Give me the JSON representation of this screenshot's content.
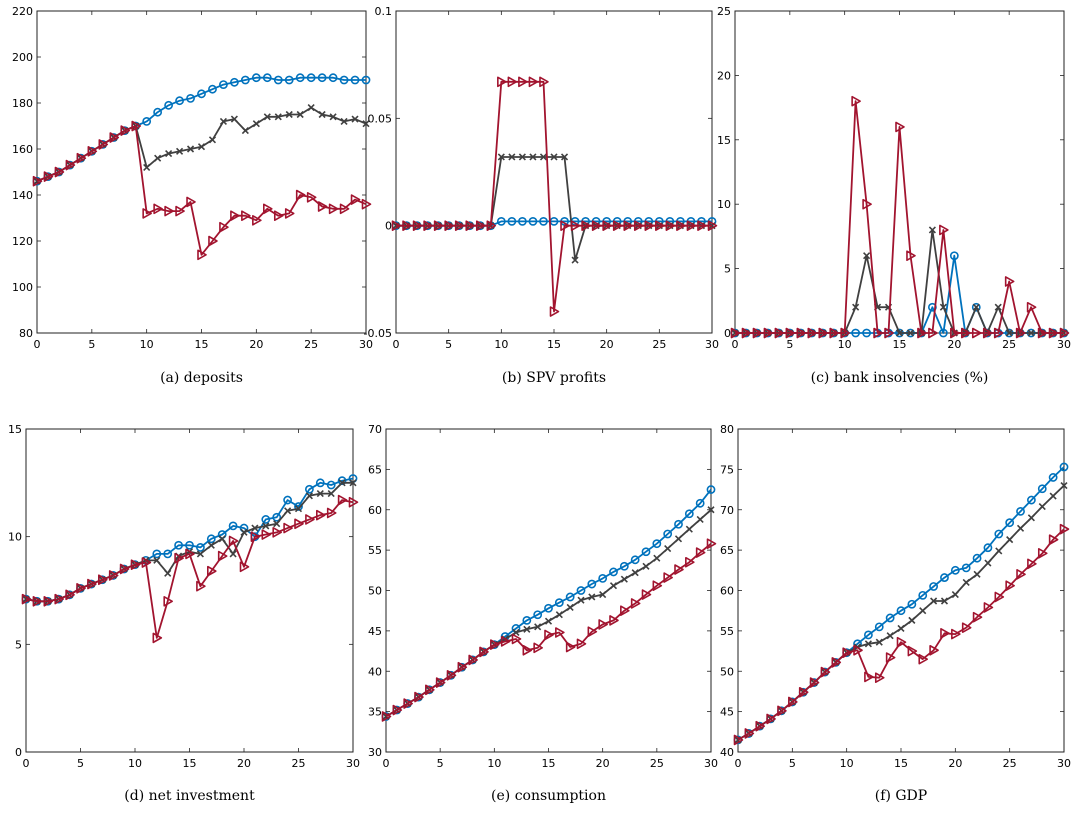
{
  "chart_data": [
    {
      "type": "line",
      "caption": "(a) deposits",
      "xlim": [
        0,
        30
      ],
      "ylim": [
        80,
        220
      ],
      "xticks": [
        0,
        5,
        10,
        15,
        20,
        25,
        30
      ],
      "yticks": [
        80,
        100,
        120,
        140,
        160,
        180,
        200,
        220
      ],
      "x": [
        0,
        1,
        2,
        3,
        4,
        5,
        6,
        7,
        8,
        9,
        10,
        11,
        12,
        13,
        14,
        15,
        16,
        17,
        18,
        19,
        20,
        21,
        22,
        23,
        24,
        25,
        26,
        27,
        28,
        29,
        30
      ],
      "series": [
        {
          "color": "#0072bd",
          "marker": "circle",
          "values": [
            146,
            148,
            150,
            153,
            156,
            159,
            162,
            165,
            168,
            170,
            172,
            176,
            179,
            181,
            182,
            184,
            186,
            188,
            189,
            190,
            191,
            191,
            190,
            190,
            191,
            191,
            191,
            191,
            190,
            190,
            190
          ]
        },
        {
          "color": "#404040",
          "marker": "x",
          "values": [
            146,
            148,
            150,
            153,
            156,
            159,
            162,
            165,
            168,
            170,
            152,
            156,
            158,
            159,
            160,
            161,
            164,
            172,
            173,
            168,
            171,
            174,
            174,
            175,
            175,
            178,
            175,
            174,
            172,
            173,
            171
          ]
        },
        {
          "color": "#a2142f",
          "marker": "triangle-right",
          "values": [
            146,
            148,
            150,
            153,
            156,
            159,
            162,
            165,
            168,
            170,
            132,
            134,
            133,
            133,
            137,
            114,
            120,
            126,
            131,
            131,
            129,
            134,
            131,
            132,
            140,
            139,
            135,
            134,
            134,
            138,
            136
          ]
        }
      ]
    },
    {
      "type": "line",
      "caption": "(b) SPV profits",
      "xlim": [
        0,
        30
      ],
      "ylim": [
        -0.05,
        0.1
      ],
      "xticks": [
        0,
        5,
        10,
        15,
        20,
        25,
        30
      ],
      "yticks": [
        -0.05,
        0,
        0.05,
        0.1
      ],
      "ytick_labels": [
        "-0.05",
        "0",
        "0.05",
        "0.1"
      ],
      "x": [
        0,
        1,
        2,
        3,
        4,
        5,
        6,
        7,
        8,
        9,
        10,
        11,
        12,
        13,
        14,
        15,
        16,
        17,
        18,
        19,
        20,
        21,
        22,
        23,
        24,
        25,
        26,
        27,
        28,
        29,
        30
      ],
      "series": [
        {
          "color": "#0072bd",
          "marker": "circle",
          "values": [
            0,
            0,
            0,
            0,
            0,
            0,
            0,
            0,
            0,
            0,
            0.002,
            0.002,
            0.002,
            0.002,
            0.002,
            0.002,
            0.002,
            0.002,
            0.002,
            0.002,
            0.002,
            0.002,
            0.002,
            0.002,
            0.002,
            0.002,
            0.002,
            0.002,
            0.002,
            0.002,
            0.002
          ]
        },
        {
          "color": "#404040",
          "marker": "x",
          "values": [
            0,
            0,
            0,
            0,
            0,
            0,
            0,
            0,
            0,
            0,
            0.032,
            0.032,
            0.032,
            0.032,
            0.032,
            0.032,
            0.032,
            -0.016,
            0,
            0,
            0,
            0,
            0,
            0,
            0,
            0,
            0,
            0,
            0,
            0,
            0
          ]
        },
        {
          "color": "#a2142f",
          "marker": "triangle-right",
          "values": [
            0,
            0,
            0,
            0,
            0,
            0,
            0,
            0,
            0,
            0,
            0.067,
            0.067,
            0.067,
            0.067,
            0.067,
            -0.04,
            0,
            0,
            0,
            0,
            0,
            0,
            0,
            0,
            0,
            0,
            0,
            0,
            0,
            0,
            0
          ]
        }
      ]
    },
    {
      "type": "line",
      "caption": "(c) bank insolvencies (%)",
      "xlim": [
        0,
        30
      ],
      "ylim": [
        0,
        25
      ],
      "xticks": [
        0,
        5,
        10,
        15,
        20,
        25,
        30
      ],
      "yticks": [
        0,
        5,
        10,
        15,
        20,
        25
      ],
      "x": [
        0,
        1,
        2,
        3,
        4,
        5,
        6,
        7,
        8,
        9,
        10,
        11,
        12,
        13,
        14,
        15,
        16,
        17,
        18,
        19,
        20,
        21,
        22,
        23,
        24,
        25,
        26,
        27,
        28,
        29,
        30
      ],
      "series": [
        {
          "color": "#0072bd",
          "marker": "circle",
          "values": [
            0,
            0,
            0,
            0,
            0,
            0,
            0,
            0,
            0,
            0,
            0,
            0,
            0,
            0,
            0,
            0,
            0,
            0,
            2,
            0,
            6,
            0,
            2,
            0,
            0,
            0,
            0,
            0,
            0,
            0,
            0
          ]
        },
        {
          "color": "#404040",
          "marker": "x",
          "values": [
            0,
            0,
            0,
            0,
            0,
            0,
            0,
            0,
            0,
            0,
            0,
            2,
            6,
            2,
            2,
            0,
            0,
            0,
            8,
            2,
            0,
            0,
            2,
            0,
            2,
            0,
            0,
            0,
            0,
            0,
            0
          ]
        },
        {
          "color": "#a2142f",
          "marker": "triangle-right",
          "values": [
            0,
            0,
            0,
            0,
            0,
            0,
            0,
            0,
            0,
            0,
            0,
            18,
            10,
            0,
            0,
            16,
            6,
            0,
            0,
            8,
            0,
            0,
            0,
            0,
            0,
            4,
            0,
            2,
            0,
            0,
            0
          ]
        }
      ]
    },
    {
      "type": "line",
      "caption": "(d) net investment",
      "xlim": [
        0,
        30
      ],
      "ylim": [
        0,
        15
      ],
      "xticks": [
        0,
        5,
        10,
        15,
        20,
        25,
        30
      ],
      "yticks": [
        0,
        5,
        10,
        15
      ],
      "x": [
        0,
        1,
        2,
        3,
        4,
        5,
        6,
        7,
        8,
        9,
        10,
        11,
        12,
        13,
        14,
        15,
        16,
        17,
        18,
        19,
        20,
        21,
        22,
        23,
        24,
        25,
        26,
        27,
        28,
        29,
        30
      ],
      "series": [
        {
          "color": "#0072bd",
          "marker": "circle",
          "values": [
            7.1,
            7.0,
            7.0,
            7.1,
            7.3,
            7.6,
            7.8,
            8.0,
            8.2,
            8.5,
            8.7,
            8.9,
            9.2,
            9.2,
            9.6,
            9.6,
            9.5,
            9.9,
            10.1,
            10.5,
            10.4,
            10.0,
            10.8,
            10.9,
            11.7,
            11.4,
            12.2,
            12.5,
            12.4,
            12.6,
            12.7
          ]
        },
        {
          "color": "#404040",
          "marker": "x",
          "values": [
            7.1,
            7.0,
            7.0,
            7.1,
            7.3,
            7.6,
            7.8,
            8.0,
            8.2,
            8.5,
            8.7,
            8.9,
            8.9,
            8.3,
            9.1,
            9.3,
            9.2,
            9.6,
            9.9,
            9.2,
            10.2,
            10.4,
            10.5,
            10.6,
            11.2,
            11.3,
            11.9,
            12.0,
            12.0,
            12.5,
            12.5
          ]
        },
        {
          "color": "#a2142f",
          "marker": "triangle-right",
          "values": [
            7.1,
            7.0,
            7.0,
            7.1,
            7.3,
            7.6,
            7.8,
            8.0,
            8.2,
            8.5,
            8.7,
            8.8,
            5.3,
            7.0,
            9.0,
            9.2,
            7.7,
            8.4,
            9.1,
            9.8,
            8.6,
            10.0,
            10.1,
            10.2,
            10.4,
            10.6,
            10.8,
            11.0,
            11.1,
            11.7,
            11.6
          ]
        }
      ]
    },
    {
      "type": "line",
      "caption": "(e) consumption",
      "xlim": [
        0,
        30
      ],
      "ylim": [
        30,
        70
      ],
      "xticks": [
        0,
        5,
        10,
        15,
        20,
        25,
        30
      ],
      "yticks": [
        30,
        35,
        40,
        45,
        50,
        55,
        60,
        65,
        70
      ],
      "x": [
        0,
        1,
        2,
        3,
        4,
        5,
        6,
        7,
        8,
        9,
        10,
        11,
        12,
        13,
        14,
        15,
        16,
        17,
        18,
        19,
        20,
        21,
        22,
        23,
        24,
        25,
        26,
        27,
        28,
        29,
        30
      ],
      "series": [
        {
          "color": "#0072bd",
          "marker": "circle",
          "values": [
            34.4,
            35.2,
            36.0,
            36.8,
            37.7,
            38.6,
            39.5,
            40.5,
            41.4,
            42.4,
            43.3,
            44.3,
            45.3,
            46.3,
            47.0,
            47.8,
            48.5,
            49.2,
            50.0,
            50.8,
            51.5,
            52.3,
            53.0,
            53.8,
            54.8,
            55.8,
            57.0,
            58.2,
            59.5,
            60.8,
            62.5
          ]
        },
        {
          "color": "#404040",
          "marker": "x",
          "values": [
            34.4,
            35.2,
            36.0,
            36.8,
            37.7,
            38.6,
            39.5,
            40.5,
            41.4,
            42.4,
            43.3,
            44.0,
            44.8,
            45.2,
            45.5,
            46.2,
            47.0,
            47.9,
            48.8,
            49.2,
            49.5,
            50.6,
            51.4,
            52.2,
            53.0,
            54.0,
            55.2,
            56.4,
            57.6,
            58.8,
            60.0
          ]
        },
        {
          "color": "#a2142f",
          "marker": "triangle-right",
          "values": [
            34.4,
            35.2,
            36.0,
            36.8,
            37.7,
            38.6,
            39.5,
            40.5,
            41.4,
            42.4,
            43.3,
            43.7,
            44.0,
            42.6,
            42.9,
            44.5,
            44.8,
            43.0,
            43.4,
            44.9,
            45.8,
            46.3,
            47.5,
            48.4,
            49.5,
            50.6,
            51.6,
            52.6,
            53.5,
            54.7,
            55.8
          ]
        }
      ]
    },
    {
      "type": "line",
      "caption": "(f) GDP",
      "xlim": [
        0,
        30
      ],
      "ylim": [
        40,
        80
      ],
      "xticks": [
        0,
        5,
        10,
        15,
        20,
        25,
        30
      ],
      "yticks": [
        40,
        45,
        50,
        55,
        60,
        65,
        70,
        75,
        80
      ],
      "x": [
        0,
        1,
        2,
        3,
        4,
        5,
        6,
        7,
        8,
        9,
        10,
        11,
        12,
        13,
        14,
        15,
        16,
        17,
        18,
        19,
        20,
        21,
        22,
        23,
        24,
        25,
        26,
        27,
        28,
        29,
        30
      ],
      "series": [
        {
          "color": "#0072bd",
          "marker": "circle",
          "values": [
            41.5,
            42.3,
            43.2,
            44.1,
            45.1,
            46.2,
            47.4,
            48.6,
            49.9,
            51.1,
            52.3,
            53.4,
            54.5,
            55.5,
            56.6,
            57.5,
            58.3,
            59.4,
            60.5,
            61.6,
            62.5,
            62.8,
            64.0,
            65.3,
            67.0,
            68.4,
            69.8,
            71.2,
            72.6,
            74.0,
            75.3
          ]
        },
        {
          "color": "#404040",
          "marker": "x",
          "values": [
            41.5,
            42.3,
            43.2,
            44.1,
            45.1,
            46.2,
            47.4,
            48.6,
            49.9,
            51.1,
            52.3,
            53.0,
            53.4,
            53.6,
            54.4,
            55.3,
            56.3,
            57.5,
            58.7,
            58.7,
            59.5,
            61.0,
            62.0,
            63.4,
            64.9,
            66.3,
            67.7,
            69.0,
            70.4,
            71.7,
            73.0
          ]
        },
        {
          "color": "#a2142f",
          "marker": "triangle-right",
          "values": [
            41.5,
            42.3,
            43.2,
            44.1,
            45.1,
            46.2,
            47.4,
            48.6,
            49.9,
            51.1,
            52.3,
            52.6,
            49.3,
            49.2,
            51.7,
            53.6,
            52.5,
            51.5,
            52.6,
            54.7,
            54.6,
            55.4,
            56.7,
            57.9,
            59.2,
            60.6,
            62.0,
            63.3,
            64.6,
            66.3,
            67.6
          ]
        }
      ]
    }
  ]
}
